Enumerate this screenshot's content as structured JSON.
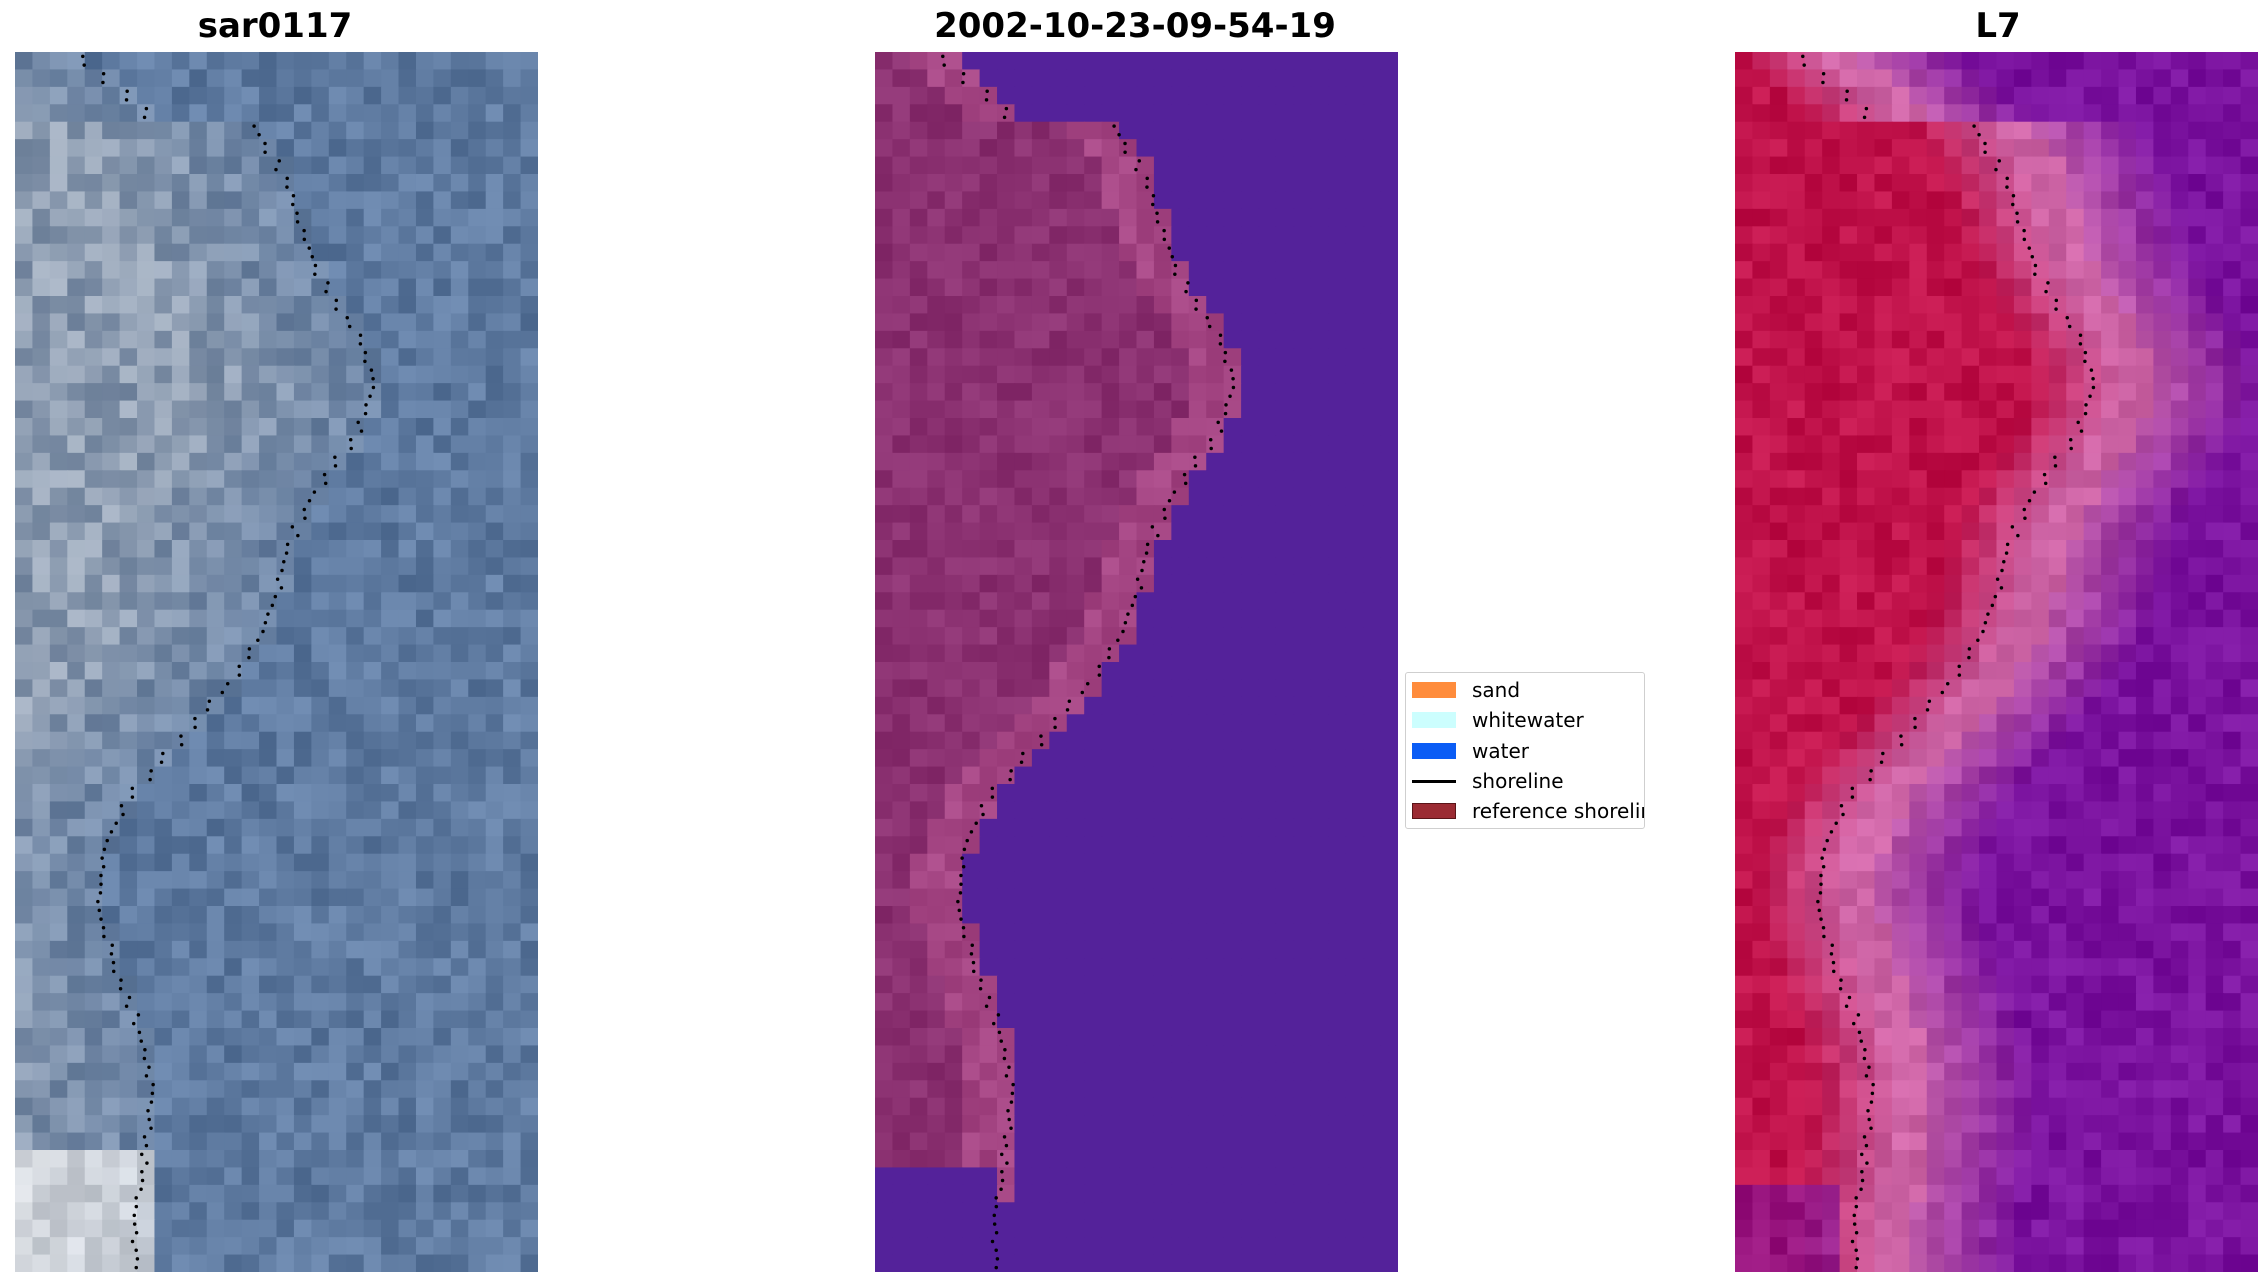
{
  "panels": [
    {
      "id": "rgb",
      "title": "sar0117"
    },
    {
      "id": "classified",
      "title": "2002-10-23-09-54-19"
    },
    {
      "id": "index",
      "title": "L7"
    }
  ],
  "legend": {
    "items": [
      {
        "label": "sand",
        "color": "#ff8c3c",
        "kind": "patch"
      },
      {
        "label": "whitewater",
        "color": "#ccfefe",
        "kind": "patch"
      },
      {
        "label": "water",
        "color": "#0b5df5",
        "kind": "patch"
      },
      {
        "label": "shoreline",
        "color": "#000000",
        "kind": "line"
      },
      {
        "label": "reference shoreline buffer",
        "color": "#9b2b33",
        "kind": "patch"
      }
    ]
  },
  "colors": {
    "rgb_base": "#5e7aa0",
    "rgb_land": "#9aa6b6",
    "classified_water": "#54229a",
    "classified_land": "#8a3070",
    "index_land": "#c0124a",
    "index_water": "#7a129e",
    "shoreline": "#000000"
  }
}
